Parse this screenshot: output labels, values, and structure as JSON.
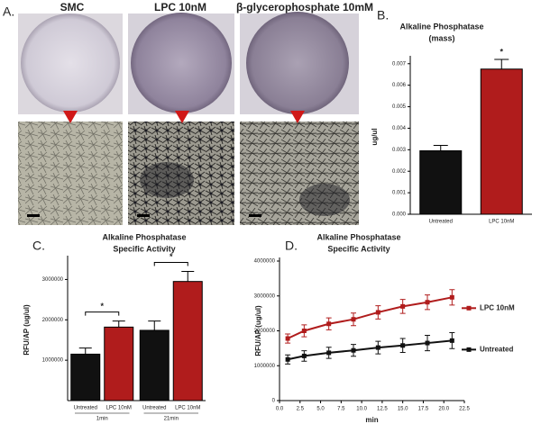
{
  "panel_labels": [
    "A.",
    "B.",
    "C.",
    "D."
  ],
  "images": {
    "labels": [
      "SMC",
      "LPC 10nM",
      "β-glycerophosphate  10mM"
    ]
  },
  "chart_data": [
    {
      "type": "bar",
      "title": "Alkaline Phosphatase",
      "subtitle": "(mass)",
      "y_label": "ug/ul",
      "categories": [
        "Untreated",
        "LPC 10nM"
      ],
      "values": [
        0.00295,
        0.00675
      ],
      "errors": [
        0.00025,
        0.00045
      ],
      "colors": [
        "#111111",
        "#b01c1c"
      ],
      "annotations": [
        "*"
      ],
      "ylim": [
        0,
        0.0072
      ],
      "yticks": [
        {
          "value": 0,
          "label": "0.000"
        },
        {
          "value": 0.001,
          "label": "0.001"
        },
        {
          "value": 0.002,
          "label": "0.002"
        },
        {
          "value": 0.003,
          "label": "0.003"
        },
        {
          "value": 0.004,
          "label": "0.004"
        },
        {
          "value": 0.005,
          "label": "0.005"
        },
        {
          "value": 0.006,
          "label": "0.006"
        },
        {
          "value": 0.007,
          "label": "0.007"
        }
      ]
    },
    {
      "type": "grouped-bar",
      "title": "Alkaline Phosphatase",
      "subtitle": "Specific Activity",
      "y_label": "RFU/AP (ug/ul)",
      "categories": [
        "1min",
        "21min"
      ],
      "series": [
        {
          "name": "Untreated",
          "color": "#111111",
          "values": [
            1150000,
            1740000
          ],
          "errors": [
            150000,
            230000
          ]
        },
        {
          "name": "LPC 10nM",
          "color": "#b01c1c",
          "values": [
            1820000,
            2950000
          ],
          "errors": [
            150000,
            250000
          ]
        }
      ],
      "annotations": [
        "*",
        "*"
      ],
      "ylim": [
        0,
        3500000
      ],
      "yticks": [
        1000000,
        2000000,
        3000000
      ]
    },
    {
      "type": "line",
      "title": "Alkaline Phosphatase",
      "subtitle": "Specific Activity",
      "y_label": "RFU/AP (ug/ul)",
      "x_label": "min",
      "x": [
        1,
        3,
        6,
        9,
        12,
        15,
        18,
        21
      ],
      "series": [
        {
          "name": "LPC 10nM",
          "color": "#b01c1c",
          "values": [
            1780000,
            2000000,
            2200000,
            2330000,
            2530000,
            2700000,
            2820000,
            2960000
          ],
          "errors": [
            130000,
            170000,
            170000,
            180000,
            190000,
            200000,
            210000,
            220000
          ]
        },
        {
          "name": "Untreated",
          "color": "#111111",
          "values": [
            1180000,
            1280000,
            1370000,
            1440000,
            1520000,
            1580000,
            1650000,
            1720000
          ],
          "errors": [
            130000,
            150000,
            160000,
            170000,
            180000,
            200000,
            220000,
            230000
          ]
        }
      ],
      "xlim": [
        0,
        22.5
      ],
      "xticks": [
        {
          "value": 0,
          "label": "0.0"
        },
        {
          "value": 2.5,
          "label": "2.5"
        },
        {
          "value": 5,
          "label": "5.0"
        },
        {
          "value": 7.5,
          "label": "7.5"
        },
        {
          "value": 10,
          "label": "10.0"
        },
        {
          "value": 12.5,
          "label": "12.5"
        },
        {
          "value": 15,
          "label": "15.0"
        },
        {
          "value": 17.5,
          "label": "17.5"
        },
        {
          "value": 20,
          "label": "20.0"
        },
        {
          "value": 22.5,
          "label": "22.5"
        }
      ],
      "ylim": [
        0,
        4000000
      ],
      "yticks": [
        0,
        1000000,
        2000000,
        3000000,
        4000000
      ]
    }
  ]
}
